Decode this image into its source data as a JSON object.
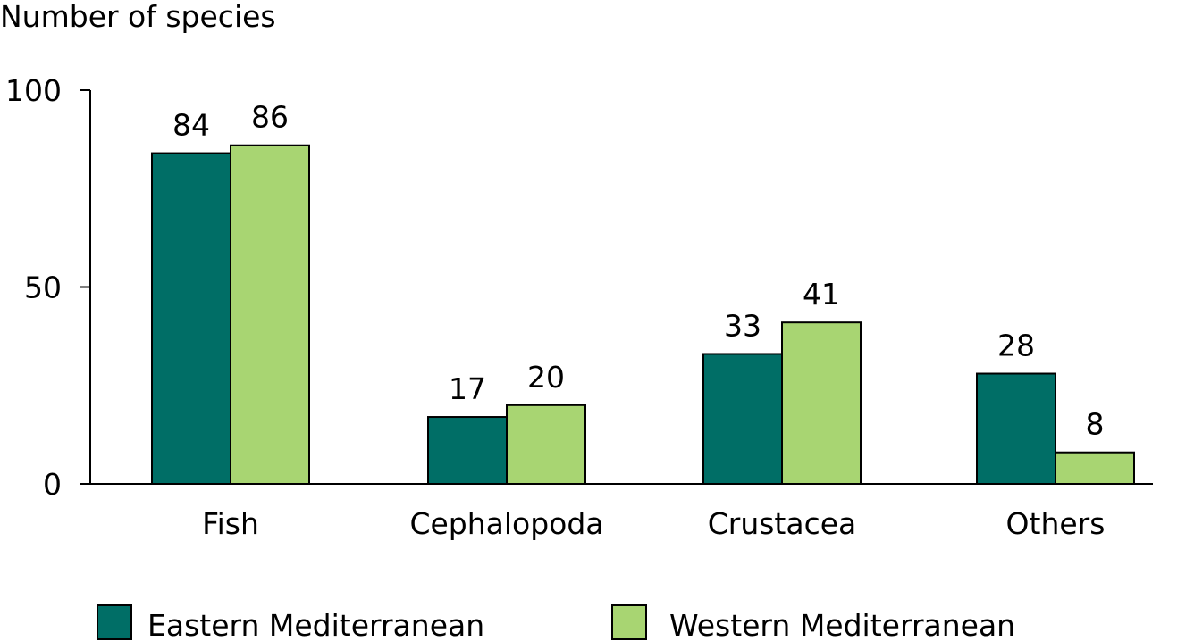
{
  "chart_data": {
    "type": "bar",
    "ylabel": "Number of species",
    "xlabel": "",
    "ylim": [
      0,
      100
    ],
    "yticks": [
      0,
      50,
      100
    ],
    "grid": false,
    "legend_position": "bottom",
    "categories": [
      "Fish",
      "Cephalopoda",
      "Crustacea",
      "Others"
    ],
    "series": [
      {
        "name": "Eastern Mediterranean",
        "color": "#006e66",
        "values": [
          84,
          17,
          33,
          28
        ]
      },
      {
        "name": "Western Mediterranean",
        "color": "#a8d572",
        "values": [
          86,
          20,
          41,
          8
        ]
      }
    ]
  }
}
